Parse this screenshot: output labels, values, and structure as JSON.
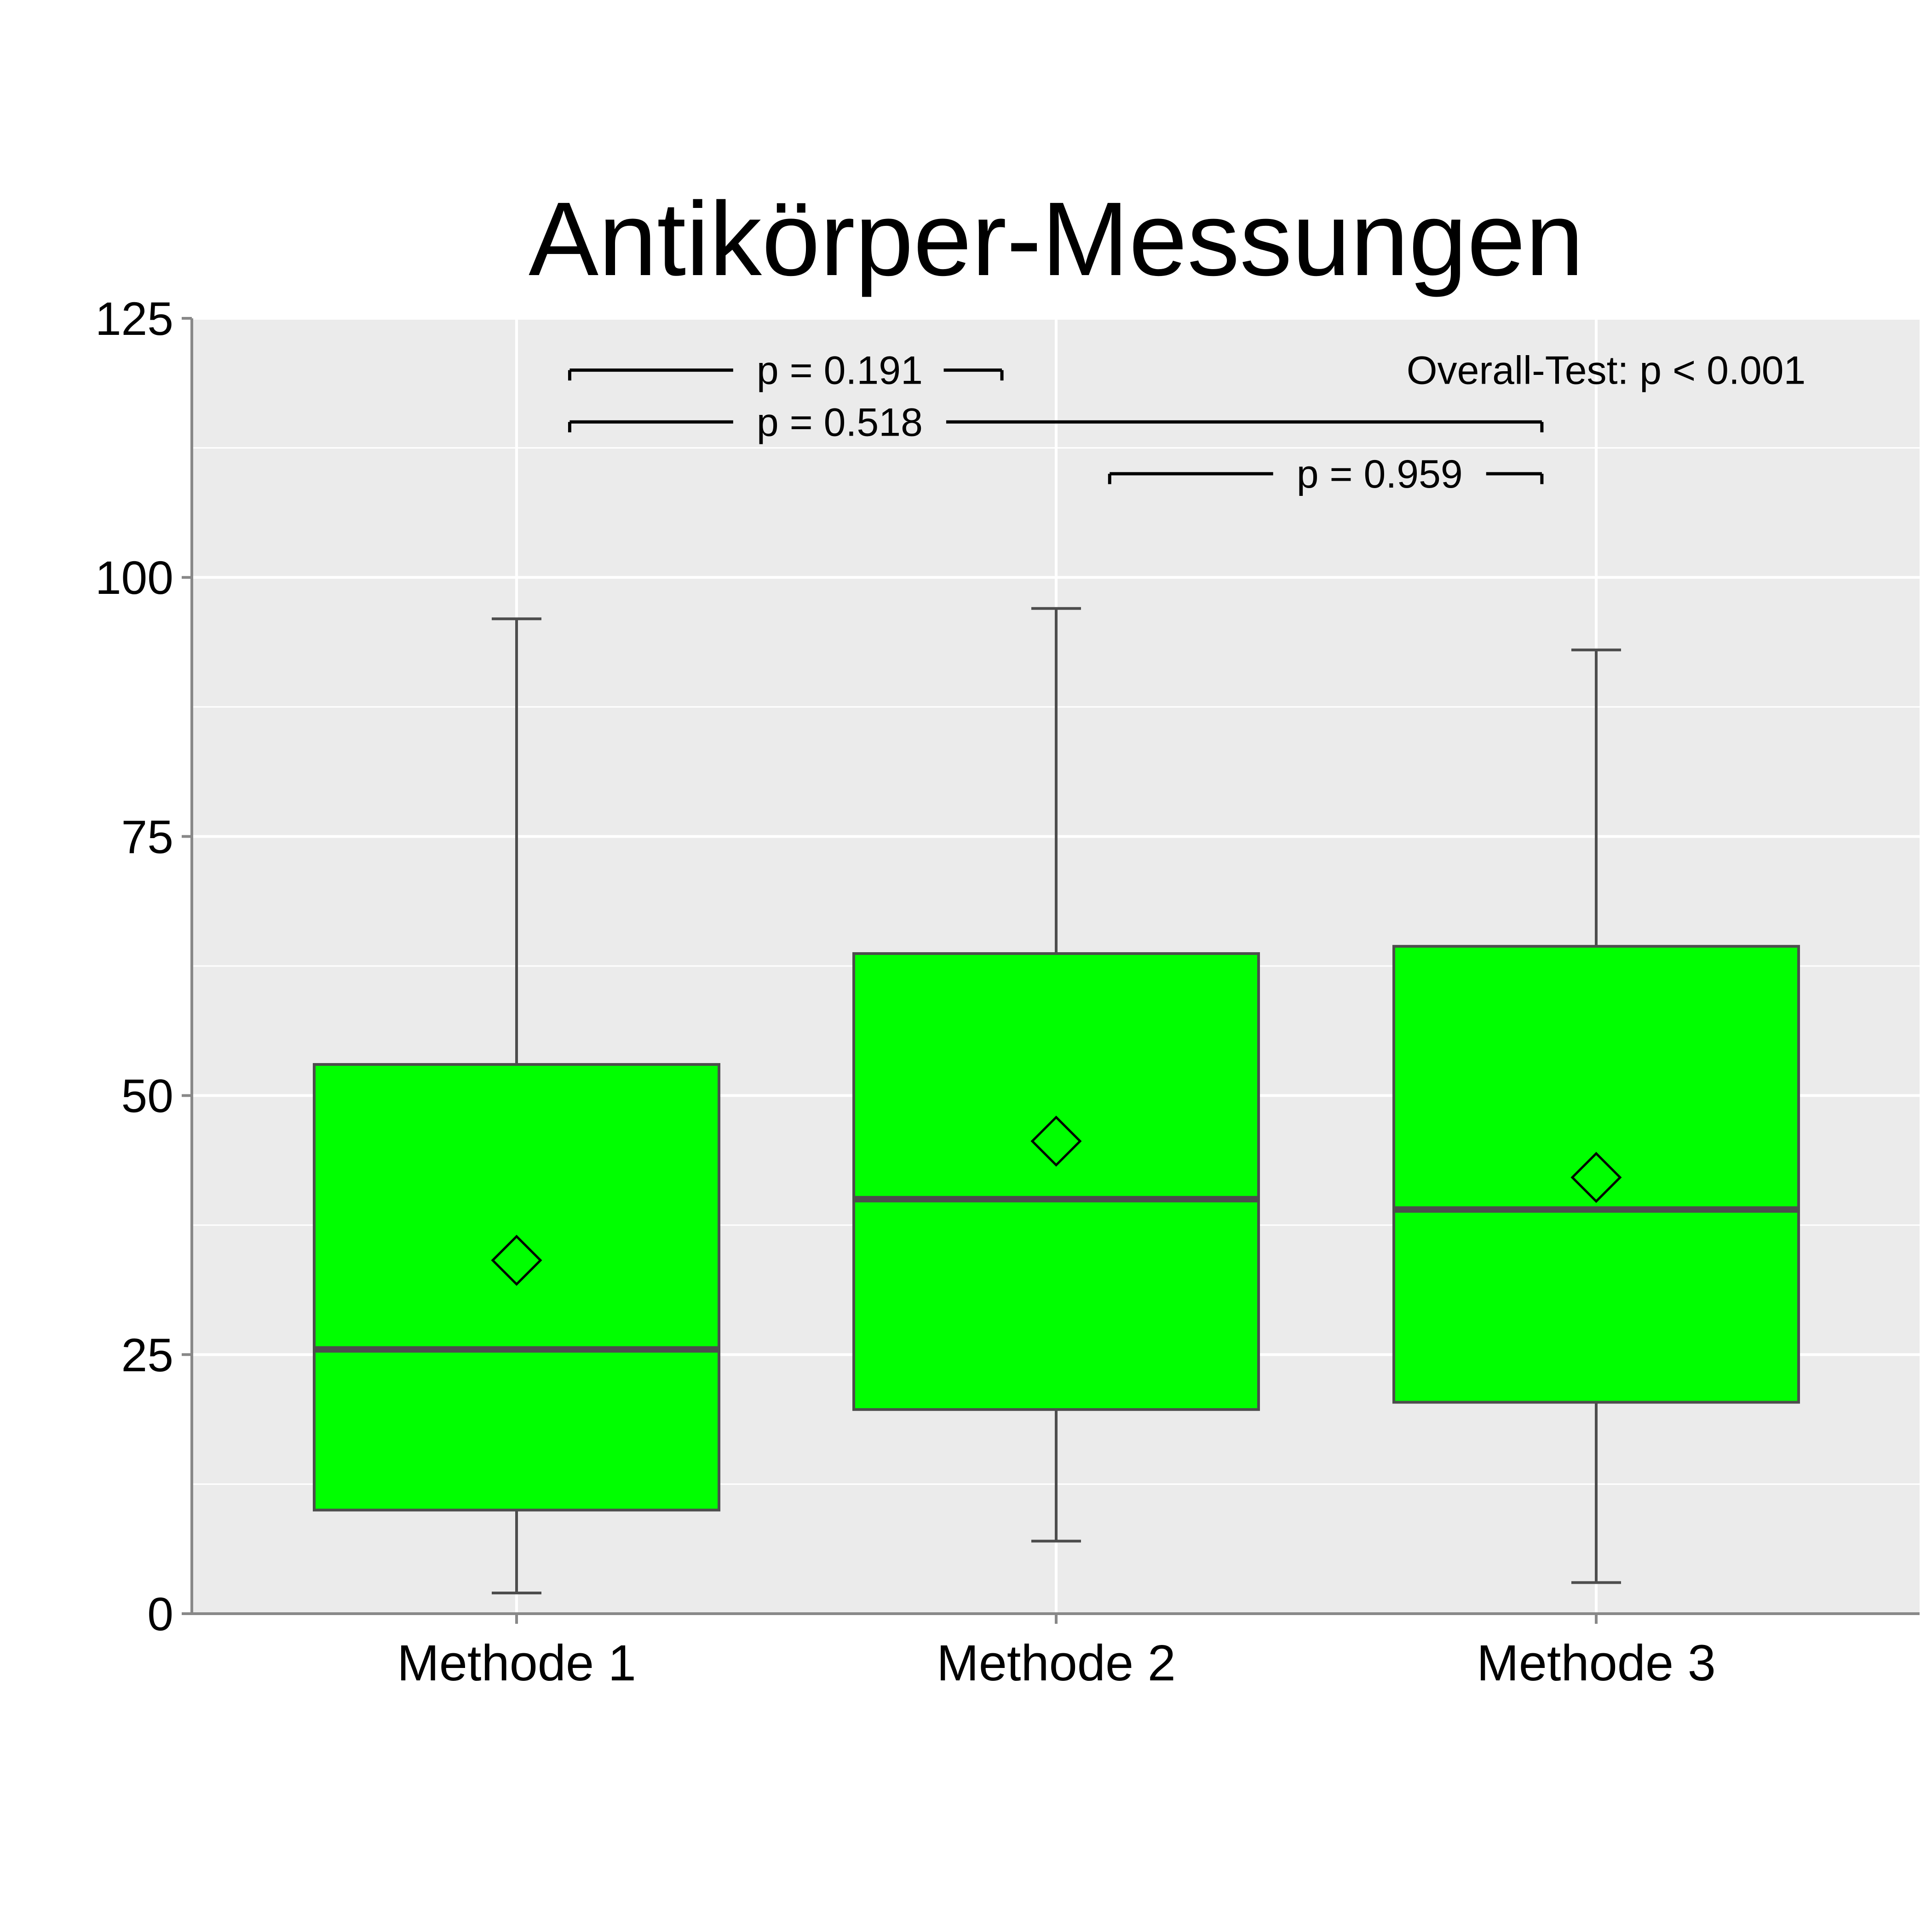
{
  "chart_data": {
    "type": "box",
    "title": "Antikörper-Messungen",
    "xlabel": "",
    "ylabel": "",
    "ylim": [
      0,
      125
    ],
    "yticks": [
      0,
      25,
      50,
      75,
      100,
      125
    ],
    "grid": true,
    "categories": [
      "Methode 1",
      "Methode 2",
      "Methode 3"
    ],
    "boxes": [
      {
        "min": 2,
        "q1": 10,
        "median": 25.5,
        "q3": 53,
        "max": 96,
        "mean": 34.1
      },
      {
        "min": 7,
        "q1": 19.7,
        "median": 40,
        "q3": 63.7,
        "max": 97,
        "mean": 45.6
      },
      {
        "min": 3,
        "q1": 20.4,
        "median": 39,
        "q3": 64.4,
        "max": 93,
        "mean": 42.1
      }
    ],
    "comparisons": [
      {
        "from": 0,
        "to": 1,
        "y": 120,
        "label": "p = 0.191"
      },
      {
        "from": 0,
        "to": 2,
        "y": 115,
        "label": "p = 0.518"
      },
      {
        "from": 1,
        "to": 2,
        "y": 110,
        "label": "p = 0.959"
      }
    ],
    "annotation": "Overall-Test: p < 0.001",
    "colors": {
      "box_fill": "#00FF00",
      "box_line": "#4D4D4D",
      "panel": "#EBEBEB",
      "grid": "#FFFFFF",
      "mean_marker": "#000000"
    }
  }
}
